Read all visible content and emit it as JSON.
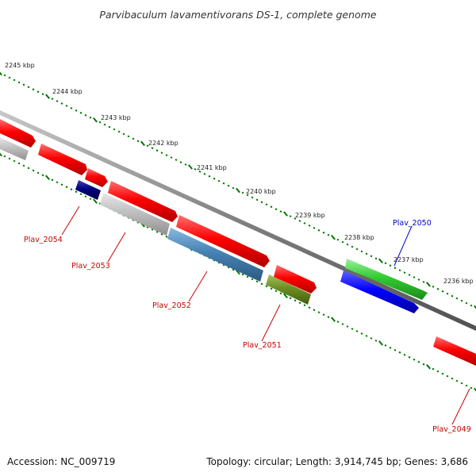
{
  "title": "Parvibaculum lavamentivorans DS-1, complete genome",
  "accession": "Accession: NC_009719",
  "stats": "Topology: circular; Length: 3,914,745 bp; Genes: 3,686",
  "tick_labels": [
    "2245 kbp",
    "2244 kbp",
    "2243 kbp",
    "2242 kbp",
    "2241 kbp",
    "2240 kbp",
    "2239 kbp",
    "2238 kbp",
    "2237 kbp",
    "2236 kbp"
  ],
  "gene_labels": [
    {
      "text": "Plav_2054",
      "color": "#cc0000"
    },
    {
      "text": "Plav_2053",
      "color": "#cc0000"
    },
    {
      "text": "Plav_2052",
      "color": "#cc0000"
    },
    {
      "text": "Plav_2051",
      "color": "#cc0000"
    },
    {
      "text": "Plav_2050",
      "color": "#0000cc"
    },
    {
      "text": "Plav_2049",
      "color": "#cc0000"
    }
  ],
  "colors": {
    "tick": "#007700",
    "backbone": "#808080",
    "red": "#ff0000",
    "grey": "#c0c0c0",
    "navy": "#000080",
    "steel": "#4682b4",
    "olive": "#6b8e23",
    "green": "#33cc33",
    "blue": "#0000ff"
  }
}
